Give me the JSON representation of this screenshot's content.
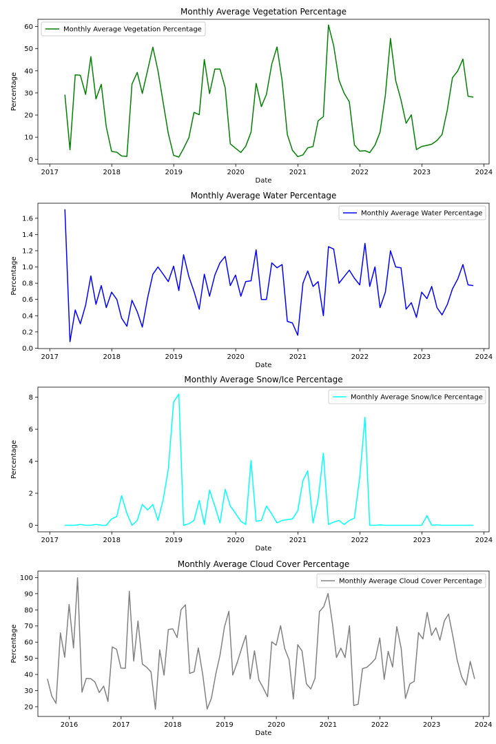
{
  "chart_data": [
    {
      "type": "line",
      "title": "Monthly Average Vegetation Percentage",
      "xlabel": "Date",
      "ylabel": "Percentage",
      "color": "#008000",
      "legend": "top-left",
      "xlim": [
        "2016-10-23",
        "2024-02-01"
      ],
      "ylim": [
        -2.1,
        63.3
      ],
      "x_ticks": [
        "2017-01-01",
        "2018-01-01",
        "2019-01-01",
        "2020-01-01",
        "2021-01-01",
        "2022-01-01",
        "2023-01-01",
        "2024-01-01"
      ],
      "x_tick_labels": [
        "2017",
        "2018",
        "2019",
        "2020",
        "2021",
        "2022",
        "2023",
        "2024"
      ],
      "y_ticks": [
        0,
        10,
        20,
        30,
        40,
        50,
        60
      ],
      "y_tick_labels": [
        "0",
        "10",
        "20",
        "30",
        "40",
        "50",
        "60"
      ],
      "series": [
        {
          "name": "Monthly Average Vegetation Percentage",
          "x": [
            "2017-03-31",
            "2017-04-30",
            "2017-05-31",
            "2017-06-30",
            "2017-07-31",
            "2017-08-31",
            "2017-09-30",
            "2017-10-31",
            "2017-11-30",
            "2017-12-31",
            "2018-01-31",
            "2018-02-28",
            "2018-03-31",
            "2018-04-30",
            "2018-05-31",
            "2018-06-30",
            "2018-07-31",
            "2018-08-31",
            "2018-09-30",
            "2018-10-31",
            "2018-11-30",
            "2018-12-31",
            "2019-01-31",
            "2019-02-28",
            "2019-03-31",
            "2019-04-30",
            "2019-05-31",
            "2019-06-30",
            "2019-07-31",
            "2019-08-31",
            "2019-09-30",
            "2019-10-31",
            "2019-11-30",
            "2019-12-31",
            "2020-01-31",
            "2020-02-29",
            "2020-03-31",
            "2020-04-30",
            "2020-05-31",
            "2020-06-30",
            "2020-07-31",
            "2020-08-31",
            "2020-09-30",
            "2020-10-31",
            "2020-11-30",
            "2020-12-31",
            "2021-01-31",
            "2021-02-28",
            "2021-03-31",
            "2021-04-30",
            "2021-05-31",
            "2021-06-30",
            "2021-07-31",
            "2021-08-31",
            "2021-09-30",
            "2021-10-31",
            "2021-11-30",
            "2021-12-31",
            "2022-01-31",
            "2022-02-28",
            "2022-03-31",
            "2022-04-30",
            "2022-05-31",
            "2022-06-30",
            "2022-07-31",
            "2022-08-31",
            "2022-09-30",
            "2022-10-31",
            "2022-11-30",
            "2022-12-31",
            "2023-01-31",
            "2023-02-28",
            "2023-03-31",
            "2023-04-30",
            "2023-05-31",
            "2023-06-30",
            "2023-07-31",
            "2023-08-31",
            "2023-09-30",
            "2023-10-31"
          ],
          "values": [
            29.2,
            4.3,
            38.2,
            38.0,
            29.3,
            46.4,
            27.3,
            33.9,
            14.6,
            3.6,
            3.2,
            1.5,
            1.3,
            34.0,
            39.3,
            29.8,
            40.3,
            50.7,
            40.1,
            25.6,
            11.7,
            1.8,
            1.0,
            4.9,
            9.8,
            21.2,
            20.2,
            45.1,
            29.7,
            40.8,
            40.8,
            32.3,
            7.0,
            5.0,
            3.1,
            5.9,
            12.3,
            34.3,
            23.8,
            29.4,
            43.0,
            50.8,
            35.6,
            11.2,
            4.1,
            1.2,
            2.0,
            5.2,
            5.8,
            17.4,
            19.3,
            60.7,
            51.3,
            35.8,
            29.9,
            26.0,
            6.5,
            3.7,
            3.9,
            3.0,
            6.4,
            12.3,
            29.0,
            54.6,
            35.6,
            26.8,
            16.3,
            20.1,
            4.4,
            5.8,
            6.3,
            6.8,
            8.5,
            11.2,
            22.4,
            36.9,
            39.9,
            45.3,
            28.5,
            28.1
          ]
        }
      ]
    },
    {
      "type": "line",
      "title": "Monthly Average Water Percentage",
      "xlabel": "Date",
      "ylabel": "Percentage",
      "color": "#0000ff",
      "legend": "top-right",
      "xlim": [
        "2016-10-23",
        "2024-02-01"
      ],
      "ylim": [
        -0.005,
        1.785
      ],
      "x_ticks": [
        "2017-01-01",
        "2018-01-01",
        "2019-01-01",
        "2020-01-01",
        "2021-01-01",
        "2022-01-01",
        "2023-01-01",
        "2024-01-01"
      ],
      "x_tick_labels": [
        "2017",
        "2018",
        "2019",
        "2020",
        "2021",
        "2022",
        "2023",
        "2024"
      ],
      "y_ticks": [
        0,
        0.2,
        0.4,
        0.6,
        0.8,
        1.0,
        1.2,
        1.4,
        1.6
      ],
      "y_tick_labels": [
        "0.0",
        "0.2",
        "0.4",
        "0.6",
        "0.8",
        "1.0",
        "1.2",
        "1.4",
        "1.6"
      ],
      "series": [
        {
          "name": "Monthly Average Water Percentage",
          "x": [
            "2017-03-31",
            "2017-04-30",
            "2017-05-31",
            "2017-06-30",
            "2017-07-31",
            "2017-08-31",
            "2017-09-30",
            "2017-10-31",
            "2017-11-30",
            "2017-12-31",
            "2018-01-31",
            "2018-02-28",
            "2018-03-31",
            "2018-04-30",
            "2018-05-31",
            "2018-06-30",
            "2018-07-31",
            "2018-08-31",
            "2018-09-30",
            "2018-10-31",
            "2018-11-30",
            "2018-12-31",
            "2019-01-31",
            "2019-02-28",
            "2019-03-31",
            "2019-04-30",
            "2019-05-31",
            "2019-06-30",
            "2019-07-31",
            "2019-08-31",
            "2019-09-30",
            "2019-10-31",
            "2019-11-30",
            "2019-12-31",
            "2020-01-31",
            "2020-02-29",
            "2020-03-31",
            "2020-04-30",
            "2020-05-31",
            "2020-06-30",
            "2020-07-31",
            "2020-08-31",
            "2020-09-30",
            "2020-10-31",
            "2020-11-30",
            "2020-12-31",
            "2021-01-31",
            "2021-02-28",
            "2021-03-31",
            "2021-04-30",
            "2021-05-31",
            "2021-06-30",
            "2021-07-31",
            "2021-08-31",
            "2021-09-30",
            "2021-10-31",
            "2021-11-30",
            "2021-12-31",
            "2022-01-31",
            "2022-02-28",
            "2022-03-31",
            "2022-04-30",
            "2022-05-31",
            "2022-06-30",
            "2022-07-31",
            "2022-08-31",
            "2022-09-30",
            "2022-10-31",
            "2022-11-30",
            "2022-12-31",
            "2023-01-31",
            "2023-02-28",
            "2023-03-31",
            "2023-04-30",
            "2023-05-31",
            "2023-06-30",
            "2023-07-31",
            "2023-08-31",
            "2023-09-30",
            "2023-10-31"
          ],
          "values": [
            1.71,
            0.08,
            0.47,
            0.3,
            0.53,
            0.89,
            0.54,
            0.77,
            0.5,
            0.69,
            0.6,
            0.37,
            0.27,
            0.59,
            0.45,
            0.26,
            0.62,
            0.91,
            1.0,
            0.91,
            0.82,
            1.01,
            0.71,
            1.15,
            0.88,
            0.7,
            0.48,
            0.91,
            0.64,
            0.9,
            1.05,
            1.13,
            0.77,
            0.9,
            0.64,
            0.82,
            0.83,
            1.21,
            0.6,
            0.6,
            1.05,
            0.99,
            1.03,
            0.33,
            0.31,
            0.16,
            0.8,
            0.95,
            0.76,
            0.82,
            0.4,
            1.25,
            1.22,
            0.8,
            0.88,
            0.96,
            0.86,
            0.78,
            1.29,
            0.76,
            1.0,
            0.5,
            0.69,
            1.2,
            1.0,
            0.99,
            0.48,
            0.56,
            0.38,
            0.69,
            0.61,
            0.76,
            0.5,
            0.41,
            0.54,
            0.73,
            0.85,
            1.03,
            0.78,
            0.77
          ]
        }
      ]
    },
    {
      "type": "line",
      "title": "Monthly Average Snow/Ice Percentage",
      "xlabel": "Date",
      "ylabel": "Percentage",
      "color": "#00ffff",
      "legend": "top-right",
      "xlim": [
        "2016-10-23",
        "2024-02-01"
      ],
      "ylim": [
        -0.41,
        8.63
      ],
      "x_ticks": [
        "2017-01-01",
        "2018-01-01",
        "2019-01-01",
        "2020-01-01",
        "2021-01-01",
        "2022-01-01",
        "2023-01-01",
        "2024-01-01"
      ],
      "x_tick_labels": [
        "2017",
        "2018",
        "2019",
        "2020",
        "2021",
        "2022",
        "2023",
        "2024"
      ],
      "y_ticks": [
        0,
        2,
        4,
        6,
        8
      ],
      "y_tick_labels": [
        "0",
        "2",
        "4",
        "6",
        "8"
      ],
      "series": [
        {
          "name": "Monthly Average Snow/Ice Percentage",
          "x": [
            "2017-03-31",
            "2017-04-30",
            "2017-05-31",
            "2017-06-30",
            "2017-07-31",
            "2017-08-31",
            "2017-09-30",
            "2017-10-31",
            "2017-11-30",
            "2017-12-31",
            "2018-01-31",
            "2018-02-28",
            "2018-03-31",
            "2018-04-30",
            "2018-05-31",
            "2018-06-30",
            "2018-07-31",
            "2018-08-31",
            "2018-09-30",
            "2018-10-31",
            "2018-11-30",
            "2018-12-31",
            "2019-01-31",
            "2019-02-28",
            "2019-03-31",
            "2019-04-30",
            "2019-05-31",
            "2019-06-30",
            "2019-07-31",
            "2019-08-31",
            "2019-09-30",
            "2019-10-31",
            "2019-11-30",
            "2019-12-31",
            "2020-01-31",
            "2020-02-29",
            "2020-03-31",
            "2020-04-30",
            "2020-05-31",
            "2020-06-30",
            "2020-07-31",
            "2020-08-31",
            "2020-09-30",
            "2020-10-31",
            "2020-11-30",
            "2020-12-31",
            "2021-01-31",
            "2021-02-28",
            "2021-03-31",
            "2021-04-30",
            "2021-05-31",
            "2021-06-30",
            "2021-07-31",
            "2021-08-31",
            "2021-09-30",
            "2021-10-31",
            "2021-11-30",
            "2021-12-31",
            "2022-01-31",
            "2022-02-28",
            "2022-03-31",
            "2022-04-30",
            "2022-05-31",
            "2022-06-30",
            "2022-07-31",
            "2022-08-31",
            "2022-09-30",
            "2022-10-31",
            "2022-11-30",
            "2022-12-31",
            "2023-01-31",
            "2023-02-28",
            "2023-03-31",
            "2023-04-30",
            "2023-05-31",
            "2023-06-30",
            "2023-07-31",
            "2023-08-31",
            "2023-09-30",
            "2023-10-31"
          ],
          "values": [
            0.0,
            0.0,
            0.0,
            0.05,
            0.0,
            0.0,
            0.05,
            0.0,
            0.0,
            0.4,
            0.55,
            1.85,
            0.75,
            0.0,
            0.3,
            1.3,
            0.95,
            1.3,
            0.3,
            1.6,
            3.5,
            7.7,
            8.2,
            0.0,
            0.1,
            0.3,
            1.55,
            0.05,
            2.2,
            1.2,
            0.15,
            2.25,
            1.2,
            0.75,
            0.25,
            0.05,
            4.05,
            0.25,
            0.3,
            1.2,
            0.7,
            0.15,
            0.3,
            0.35,
            0.4,
            0.9,
            2.8,
            3.4,
            0.15,
            1.6,
            4.5,
            0.05,
            0.2,
            0.3,
            0.05,
            0.3,
            0.45,
            3.0,
            6.75,
            0.0,
            0.0,
            0.02,
            0.0,
            0.0,
            0.0,
            0.0,
            0.0,
            0.0,
            0.0,
            0.0,
            0.6,
            0.0,
            0.02,
            0.0,
            0.0,
            0.0,
            0.0,
            0.0,
            0.0,
            0.0
          ]
        }
      ]
    },
    {
      "type": "line",
      "title": "Monthly Average Cloud Cover Percentage",
      "xlabel": "Date",
      "ylabel": "Percentage",
      "color": "#808080",
      "legend": "top-right",
      "xlim": [
        "2015-05-25",
        "2024-02-10"
      ],
      "ylim": [
        14.0,
        104.0
      ],
      "x_ticks": [
        "2016-01-01",
        "2017-01-01",
        "2018-01-01",
        "2019-01-01",
        "2020-01-01",
        "2021-01-01",
        "2022-01-01",
        "2023-01-01",
        "2024-01-01"
      ],
      "x_tick_labels": [
        "2016",
        "2017",
        "2018",
        "2019",
        "2020",
        "2021",
        "2022",
        "2023",
        "2024"
      ],
      "y_ticks": [
        20,
        30,
        40,
        50,
        60,
        70,
        80,
        90,
        100
      ],
      "y_tick_labels": [
        "20",
        "30",
        "40",
        "50",
        "60",
        "70",
        "80",
        "90",
        "100"
      ],
      "series": [
        {
          "name": "Monthly Average Cloud Cover Percentage",
          "x": [
            "2015-07-31",
            "2015-08-31",
            "2015-09-30",
            "2015-10-31",
            "2015-11-30",
            "2015-12-31",
            "2016-01-31",
            "2016-02-29",
            "2016-03-31",
            "2016-04-30",
            "2016-05-31",
            "2016-06-30",
            "2016-07-31",
            "2016-08-31",
            "2016-09-30",
            "2016-10-31",
            "2016-11-30",
            "2016-12-31",
            "2017-01-31",
            "2017-02-28",
            "2017-03-31",
            "2017-04-30",
            "2017-05-31",
            "2017-06-30",
            "2017-07-31",
            "2017-08-31",
            "2017-09-30",
            "2017-10-31",
            "2017-11-30",
            "2017-12-31",
            "2018-01-31",
            "2018-02-28",
            "2018-03-31",
            "2018-04-30",
            "2018-05-31",
            "2018-06-30",
            "2018-07-31",
            "2018-08-31",
            "2018-09-30",
            "2018-10-31",
            "2018-11-30",
            "2018-12-31",
            "2019-01-31",
            "2019-02-28",
            "2019-03-31",
            "2019-04-30",
            "2019-05-31",
            "2019-06-30",
            "2019-07-31",
            "2019-08-31",
            "2019-09-30",
            "2019-10-31",
            "2019-11-30",
            "2019-12-31",
            "2020-01-31",
            "2020-02-29",
            "2020-03-31",
            "2020-04-30",
            "2020-05-31",
            "2020-06-30",
            "2020-07-31",
            "2020-08-31",
            "2020-09-30",
            "2020-10-31",
            "2020-11-30",
            "2020-12-31",
            "2021-01-31",
            "2021-02-28",
            "2021-03-31",
            "2021-04-30",
            "2021-05-31",
            "2021-06-30",
            "2021-07-31",
            "2021-08-31",
            "2021-09-30",
            "2021-10-31",
            "2021-11-30",
            "2021-12-31",
            "2022-01-31",
            "2022-02-28",
            "2022-03-31",
            "2022-04-30",
            "2022-05-31",
            "2022-06-30",
            "2022-07-31",
            "2022-08-31",
            "2022-09-30",
            "2022-10-31",
            "2022-11-30",
            "2022-12-31",
            "2023-01-31",
            "2023-02-28",
            "2023-03-31",
            "2023-04-30",
            "2023-05-31",
            "2023-06-30",
            "2023-07-31",
            "2023-08-31",
            "2023-09-30",
            "2023-10-31"
          ],
          "values": [
            37.3,
            26.6,
            22.1,
            65.7,
            50.7,
            83.3,
            56.4,
            99.8,
            29.0,
            37.6,
            37.4,
            35.4,
            28.8,
            32.8,
            23.3,
            57.1,
            55.6,
            43.9,
            43.8,
            91.5,
            48.3,
            73.1,
            46.4,
            44.5,
            41.6,
            18.5,
            55.2,
            39.6,
            67.8,
            68.3,
            62.9,
            80.1,
            83.1,
            40.6,
            41.7,
            56.4,
            39.9,
            18.6,
            25.3,
            40.4,
            52.0,
            69.4,
            79.1,
            39.6,
            47.3,
            55.8,
            64.1,
            37.2,
            54.7,
            36.6,
            31.8,
            26.2,
            60.2,
            58.1,
            70.2,
            56.0,
            49.2,
            24.8,
            58.4,
            54.6,
            34.3,
            31.0,
            37.6,
            78.9,
            81.9,
            90.1,
            71.5,
            50.5,
            56.3,
            50.5,
            70.2,
            20.8,
            21.6,
            43.6,
            44.4,
            46.8,
            49.8,
            62.6,
            37.0,
            54.3,
            44.6,
            69.6,
            56.0,
            25.2,
            34.2,
            35.7,
            65.9,
            62.0,
            78.4,
            64.2,
            68.9,
            61.2,
            73.1,
            77.4,
            63.4,
            48.8,
            38.6,
            33.4,
            48.0,
            37.2
          ]
        }
      ]
    }
  ]
}
